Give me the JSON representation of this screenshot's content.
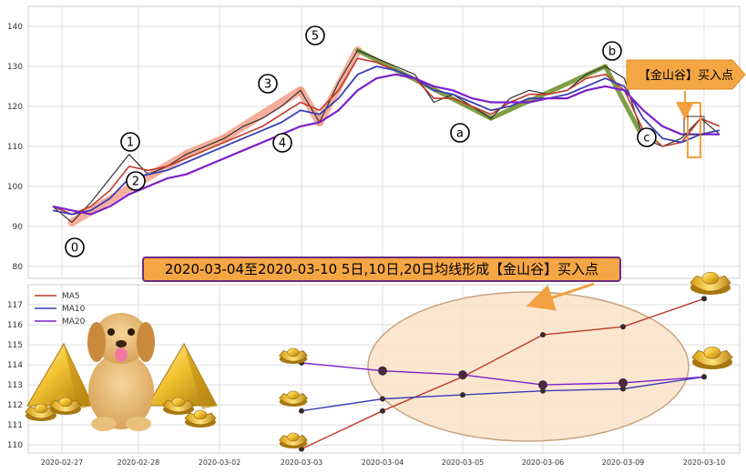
{
  "banner": {
    "text": "2020-03-04至2020-03-10 5日,10日,20日均线形成【金山谷】买入点"
  },
  "callout": {
    "text": "【金山谷】买入点"
  },
  "colors": {
    "ma5": "#c0392b",
    "ma10": "#3b3fb5",
    "ma20": "#7d1fc9",
    "price": "#333333",
    "wave_up": "#f4a08a",
    "wave_green": "#6b8e23",
    "banner_bg": "#f5a644",
    "banner_border": "#6a2c82",
    "ellipse_fill": "#fae3c8",
    "ellipse_stroke": "#c9a27e"
  },
  "chart_data": [
    {
      "type": "line",
      "panel": "top",
      "ylim": [
        77,
        145
      ],
      "yticks": [
        "80",
        "90",
        "100",
        "110",
        "120",
        "130",
        "140"
      ],
      "x": [
        "2020-02-27 09:30",
        "2020-02-27 10:30",
        "2020-02-27 13:30",
        "2020-02-27 14:30",
        "2020-02-28 09:30",
        "2020-02-28 10:30",
        "2020-02-28 13:30",
        "2020-02-28 14:30",
        "2020-03-02 09:30",
        "2020-03-02 10:30",
        "2020-03-02 13:30",
        "2020-03-02 14:30",
        "2020-03-03 09:30",
        "2020-03-03 10:30",
        "2020-03-03 13:30",
        "2020-03-03 14:30",
        "2020-03-04 09:30",
        "2020-03-04 10:30",
        "2020-03-04 13:30",
        "2020-03-04 14:30",
        "2020-03-05 09:30",
        "2020-03-05 10:30",
        "2020-03-05 13:30",
        "2020-03-05 14:30",
        "2020-03-06 09:30",
        "2020-03-06 10:30",
        "2020-03-06 13:30",
        "2020-03-06 14:30",
        "2020-03-09 09:30",
        "2020-03-09 10:30",
        "2020-03-09 13:30",
        "2020-03-09 14:30",
        "2020-03-10 09:30",
        "2020-03-10 10:30",
        "2020-03-10 13:30",
        "2020-03-10 14:30"
      ],
      "series": [
        {
          "name": "price",
          "values": [
            95,
            91,
            96,
            102,
            108,
            103,
            105,
            108,
            110,
            112,
            115,
            117,
            120,
            124,
            116,
            126,
            134,
            132,
            130,
            128,
            121,
            123,
            120,
            117,
            122,
            124,
            123,
            124,
            128,
            130,
            127,
            112,
            110,
            112,
            117,
            113
          ]
        },
        {
          "name": "MA5",
          "values": [
            95,
            93,
            95,
            99,
            105,
            104,
            105,
            107,
            109,
            111,
            113,
            115,
            118,
            121,
            119,
            124,
            132,
            131,
            129,
            127,
            122,
            122,
            120,
            118,
            121,
            123,
            123,
            124,
            127,
            128,
            124,
            114,
            110,
            111,
            117,
            115
          ]
        },
        {
          "name": "MA10",
          "values": [
            94,
            93,
            94,
            97,
            102,
            103,
            104,
            106,
            108,
            110,
            112,
            114,
            116,
            119,
            118,
            122,
            128,
            130,
            129,
            127,
            124,
            123,
            121,
            119,
            120,
            122,
            122,
            123,
            125,
            127,
            125,
            117,
            112,
            111,
            113,
            114
          ]
        },
        {
          "name": "MA20",
          "values": [
            95,
            94,
            93,
            95,
            98,
            100,
            102,
            103,
            105,
            107,
            109,
            111,
            113,
            115,
            116,
            119,
            124,
            127,
            128,
            127,
            125,
            124,
            122,
            121,
            121,
            121,
            122,
            122,
            124,
            125,
            124,
            119,
            115,
            113,
            113,
            113
          ]
        }
      ],
      "wave_labels": [
        "0",
        "1",
        "2",
        "3",
        "4",
        "5",
        "a",
        "b",
        "c"
      ]
    },
    {
      "type": "line",
      "panel": "bottom",
      "categories": [
        "2020-02-27",
        "2020-02-28",
        "2020-03-02",
        "2020-03-03",
        "2020-03-04",
        "2020-03-05",
        "2020-03-06",
        "2020-03-09",
        "2020-03-10"
      ],
      "ylim": [
        109.6,
        118
      ],
      "yticks": [
        "110",
        "111",
        "112",
        "113",
        "114",
        "115",
        "116",
        "117"
      ],
      "legend": [
        "MA5",
        "MA10",
        "MA20"
      ],
      "series": [
        {
          "name": "MA5",
          "x": [
            "2020-03-03",
            "2020-03-04",
            "2020-03-05",
            "2020-03-06",
            "2020-03-09",
            "2020-03-10"
          ],
          "values": [
            109.8,
            111.7,
            113.4,
            115.5,
            115.9,
            117.3
          ]
        },
        {
          "name": "MA10",
          "x": [
            "2020-03-03",
            "2020-03-04",
            "2020-03-05",
            "2020-03-06",
            "2020-03-09",
            "2020-03-10"
          ],
          "values": [
            111.7,
            112.3,
            112.5,
            112.7,
            112.8,
            113.4
          ]
        },
        {
          "name": "MA20",
          "x": [
            "2020-03-03",
            "2020-03-04",
            "2020-03-05",
            "2020-03-06",
            "2020-03-09",
            "2020-03-10"
          ],
          "values": [
            114.1,
            113.7,
            113.5,
            113.0,
            113.1,
            113.4
          ]
        }
      ]
    }
  ]
}
